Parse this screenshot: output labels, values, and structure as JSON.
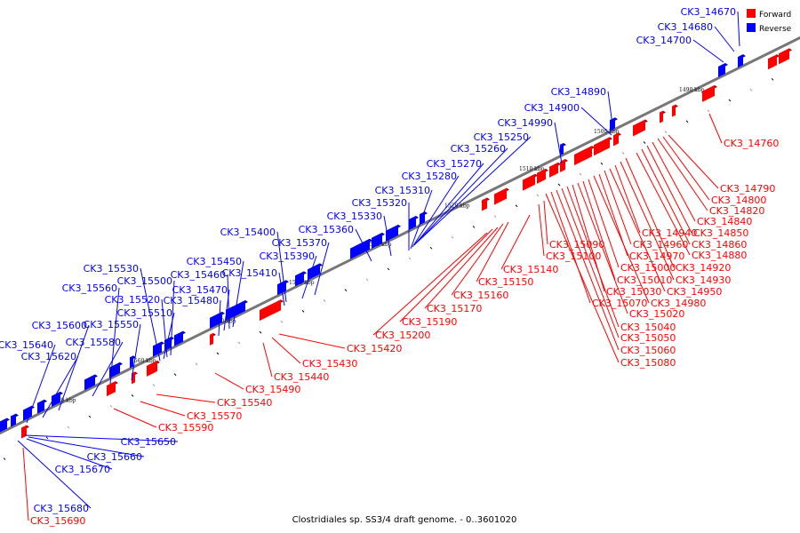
{
  "title": "Clostridiales sp. SS3/4 draft genome. - 0..3601020",
  "legend": [
    {
      "label": "Forward",
      "color": "#ff0000"
    },
    {
      "label": "Reverse",
      "color": "#0000ff"
    }
  ],
  "colors": {
    "forward": "#ff0000",
    "reverse": "#0000ff",
    "axis": "#777777"
  },
  "ticks": [
    {
      "kbp": 1490,
      "label": "1490 kbp"
    },
    {
      "kbp": 1500,
      "label": "1500 kbp"
    },
    {
      "kbp": 1510,
      "label": "1510 kbp"
    },
    {
      "kbp": 1520,
      "label": "1520 kbp"
    },
    {
      "kbp": 1530,
      "label": "1530 kbp"
    },
    {
      "kbp": 1540,
      "label": "1540 kbp"
    },
    {
      "kbp": 1550,
      "label": "1550 kbp"
    },
    {
      "kbp": 1560,
      "label": "1560 kbp"
    },
    {
      "kbp": 1570,
      "label": "1570 kbp"
    }
  ],
  "reverse_labels": [
    "CK3_14670",
    "CK3_14680",
    "CK3_14700",
    "CK3_14890",
    "CK3_14900",
    "CK3_14990",
    "CK3_15250",
    "CK3_15260",
    "CK3_15270",
    "CK3_15280",
    "CK3_15310",
    "CK3_15320",
    "CK3_15330",
    "CK3_15360",
    "CK3_15370",
    "CK3_15390",
    "CK3_15400",
    "CK3_15410",
    "CK3_15450",
    "CK3_15460",
    "CK3_15470",
    "CK3_15480",
    "CK3_15500",
    "CK3_15510",
    "CK3_15520",
    "CK3_15530",
    "CK3_15550",
    "CK3_15560",
    "CK3_15580",
    "CK3_15600",
    "CK3_15620",
    "CK3_15640",
    "CK3_15650",
    "CK3_15660",
    "CK3_15670",
    "CK3_15680"
  ],
  "forward_labels": [
    "CK3_14760",
    "CK3_14790",
    "CK3_14800",
    "CK3_14820",
    "CK3_14840",
    "CK3_14850",
    "CK3_14860",
    "CK3_14880",
    "CK3_14920",
    "CK3_14930",
    "CK3_14940",
    "CK3_14950",
    "CK3_14960",
    "CK3_14970",
    "CK3_14980",
    "CK3_15000",
    "CK3_15010",
    "CK3_15020",
    "CK3_15030",
    "CK3_15040",
    "CK3_15050",
    "CK3_15060",
    "CK3_15070",
    "CK3_15080",
    "CK3_15090",
    "CK3_15100",
    "CK3_15140",
    "CK3_15150",
    "CK3_15160",
    "CK3_15170",
    "CK3_15190",
    "CK3_15200",
    "CK3_15420",
    "CK3_15430",
    "CK3_15440",
    "CK3_15490",
    "CK3_15540",
    "CK3_15570",
    "CK3_15590",
    "CK3_15690"
  ]
}
